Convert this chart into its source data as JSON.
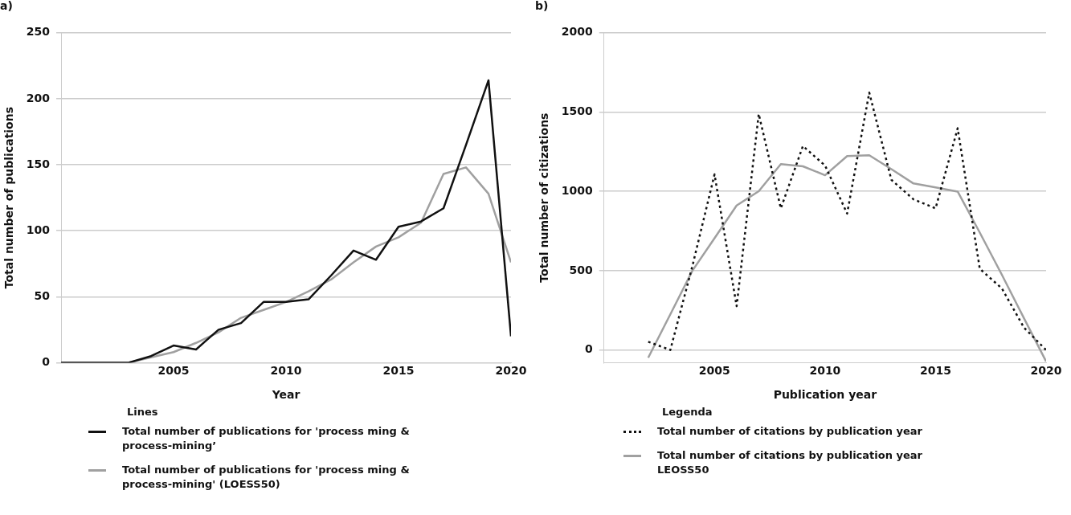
{
  "chart_data": [
    {
      "type": "line",
      "title": "a)",
      "xlabel": "Year",
      "ylabel": "Total number of publications",
      "legend_title": "Lines",
      "x": [
        2000,
        2001,
        2002,
        2003,
        2004,
        2005,
        2006,
        2007,
        2008,
        2009,
        2010,
        2011,
        2012,
        2013,
        2014,
        2015,
        2016,
        2017,
        2018,
        2019,
        2020
      ],
      "series": [
        {
          "name": "Total number of publications for 'process ming & process-mining’",
          "color": "#111111",
          "line_style": "solid",
          "values": [
            0,
            0,
            0,
            0,
            5,
            13,
            10,
            25,
            30,
            46,
            46,
            48,
            66,
            85,
            78,
            103,
            107,
            117,
            165,
            214,
            20
          ]
        },
        {
          "name": "Total number of publications for 'process ming & process-mining' (LOESS50)",
          "color": "#a0a0a0",
          "line_style": "solid",
          "values": [
            0,
            0,
            0,
            0,
            4,
            8,
            15,
            23,
            34,
            40,
            46,
            54,
            63,
            76,
            88,
            95,
            106,
            143,
            148,
            128,
            76
          ]
        }
      ],
      "xlim": [
        2000,
        2020
      ],
      "xticks": [
        2005,
        2010,
        2015,
        2020
      ],
      "ylim": [
        0,
        250
      ],
      "yticks": [
        0,
        50,
        100,
        150,
        200,
        250
      ],
      "grid": "y",
      "legend": "bottom",
      "marker": "none"
    },
    {
      "type": "line",
      "title": "b)",
      "xlabel": "Publication year",
      "ylabel": "Total number of citizations",
      "legend_title": "Legenda",
      "x": [
        2002,
        2003,
        2004,
        2005,
        2006,
        2007,
        2008,
        2009,
        2010,
        2011,
        2012,
        2013,
        2014,
        2015,
        2016,
        2017,
        2018,
        2019,
        2020
      ],
      "series": [
        {
          "name": "Total number of citations by publication year",
          "color": "#111111",
          "line_style": "dotted",
          "values": [
            52,
            0,
            530,
            1107,
            276,
            1488,
            893,
            1286,
            1163,
            860,
            1623,
            1073,
            950,
            893,
            1398,
            512,
            388,
            141,
            0
          ]
        },
        {
          "name": "Total number of citations by publication year LEOSS50",
          "color": "#a0a0a0",
          "line_style": "solid",
          "values": [
            -49,
            225,
            500,
            705,
            911,
            1001,
            1172,
            1158,
            1102,
            1223,
            1228,
            1140,
            1050,
            1025,
            999,
            740,
            474,
            200,
            -72
          ]
        }
      ],
      "xlim": [
        2000,
        2020
      ],
      "xticks": [
        2005,
        2010,
        2015,
        2020
      ],
      "ylim": [
        -80,
        2000
      ],
      "yticks": [
        0,
        500,
        1000,
        1500,
        2000
      ],
      "grid": "y",
      "legend": "bottom",
      "marker": "none"
    }
  ]
}
